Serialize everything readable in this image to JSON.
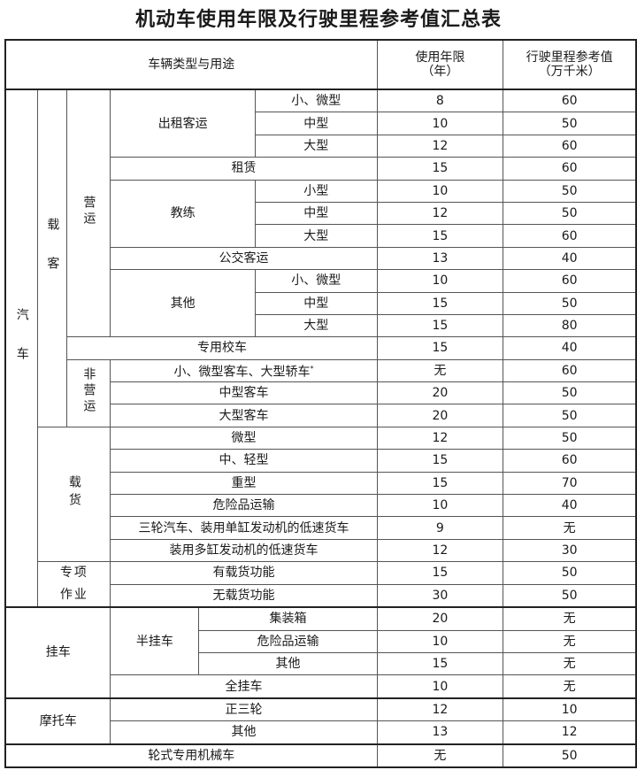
{
  "title": "机动车使用年限及行驶里程参考值汇总表",
  "header": {
    "category": "车辆类型与用途",
    "years_line1": "使用年限",
    "years_line2": "（年）",
    "mileage_line1": "行驶里程参考值",
    "mileage_line2": "（万千米）"
  },
  "groups": {
    "car": "汽车",
    "passenger": "载客",
    "commercial": "营运",
    "taxi": "出租客运",
    "training": "教练",
    "other": "其他",
    "noncommercial": "非营运",
    "cargo": "载货",
    "special": "专项作业",
    "trailer": "挂车",
    "semitrailer": "半挂车",
    "motorcycle": "摩托车"
  },
  "rows": [
    {
      "label": "小、微型",
      "years": "8",
      "mileage": "60"
    },
    {
      "label": "中型",
      "years": "10",
      "mileage": "50"
    },
    {
      "label": "大型",
      "years": "12",
      "mileage": "60"
    },
    {
      "label": "租赁",
      "years": "15",
      "mileage": "60"
    },
    {
      "label": "小型",
      "years": "10",
      "mileage": "50"
    },
    {
      "label": "中型",
      "years": "12",
      "mileage": "50"
    },
    {
      "label": "大型",
      "years": "15",
      "mileage": "60"
    },
    {
      "label": "公交客运",
      "years": "13",
      "mileage": "40"
    },
    {
      "label": "小、微型",
      "years": "10",
      "mileage": "60"
    },
    {
      "label": "中型",
      "years": "15",
      "mileage": "50"
    },
    {
      "label": "大型",
      "years": "15",
      "mileage": "80"
    },
    {
      "label": "专用校车",
      "years": "15",
      "mileage": "40"
    },
    {
      "label": "小、微型客车、大型轿车",
      "note": "*",
      "years": "无",
      "mileage": "60"
    },
    {
      "label": "中型客车",
      "years": "20",
      "mileage": "50"
    },
    {
      "label": "大型客车",
      "years": "20",
      "mileage": "50"
    },
    {
      "label": "微型",
      "years": "12",
      "mileage": "50"
    },
    {
      "label": "中、轻型",
      "years": "15",
      "mileage": "60"
    },
    {
      "label": "重型",
      "years": "15",
      "mileage": "70"
    },
    {
      "label": "危险品运输",
      "years": "10",
      "mileage": "40"
    },
    {
      "label": "三轮汽车、装用单缸发动机的低速货车",
      "years": "9",
      "mileage": "无"
    },
    {
      "label": "装用多缸发动机的低速货车",
      "years": "12",
      "mileage": "30"
    },
    {
      "label": "有载货功能",
      "years": "15",
      "mileage": "50"
    },
    {
      "label": "无载货功能",
      "years": "30",
      "mileage": "50"
    },
    {
      "label": "集装箱",
      "years": "20",
      "mileage": "无"
    },
    {
      "label": "危险品运输",
      "years": "10",
      "mileage": "无"
    },
    {
      "label": "其他",
      "years": "15",
      "mileage": "无"
    },
    {
      "label": "全挂车",
      "years": "10",
      "mileage": "无"
    },
    {
      "label": "正三轮",
      "years": "12",
      "mileage": "10"
    },
    {
      "label": "其他",
      "years": "13",
      "mileage": "12"
    },
    {
      "label": "轮式专用机械车",
      "years": "无",
      "mileage": "50"
    }
  ]
}
